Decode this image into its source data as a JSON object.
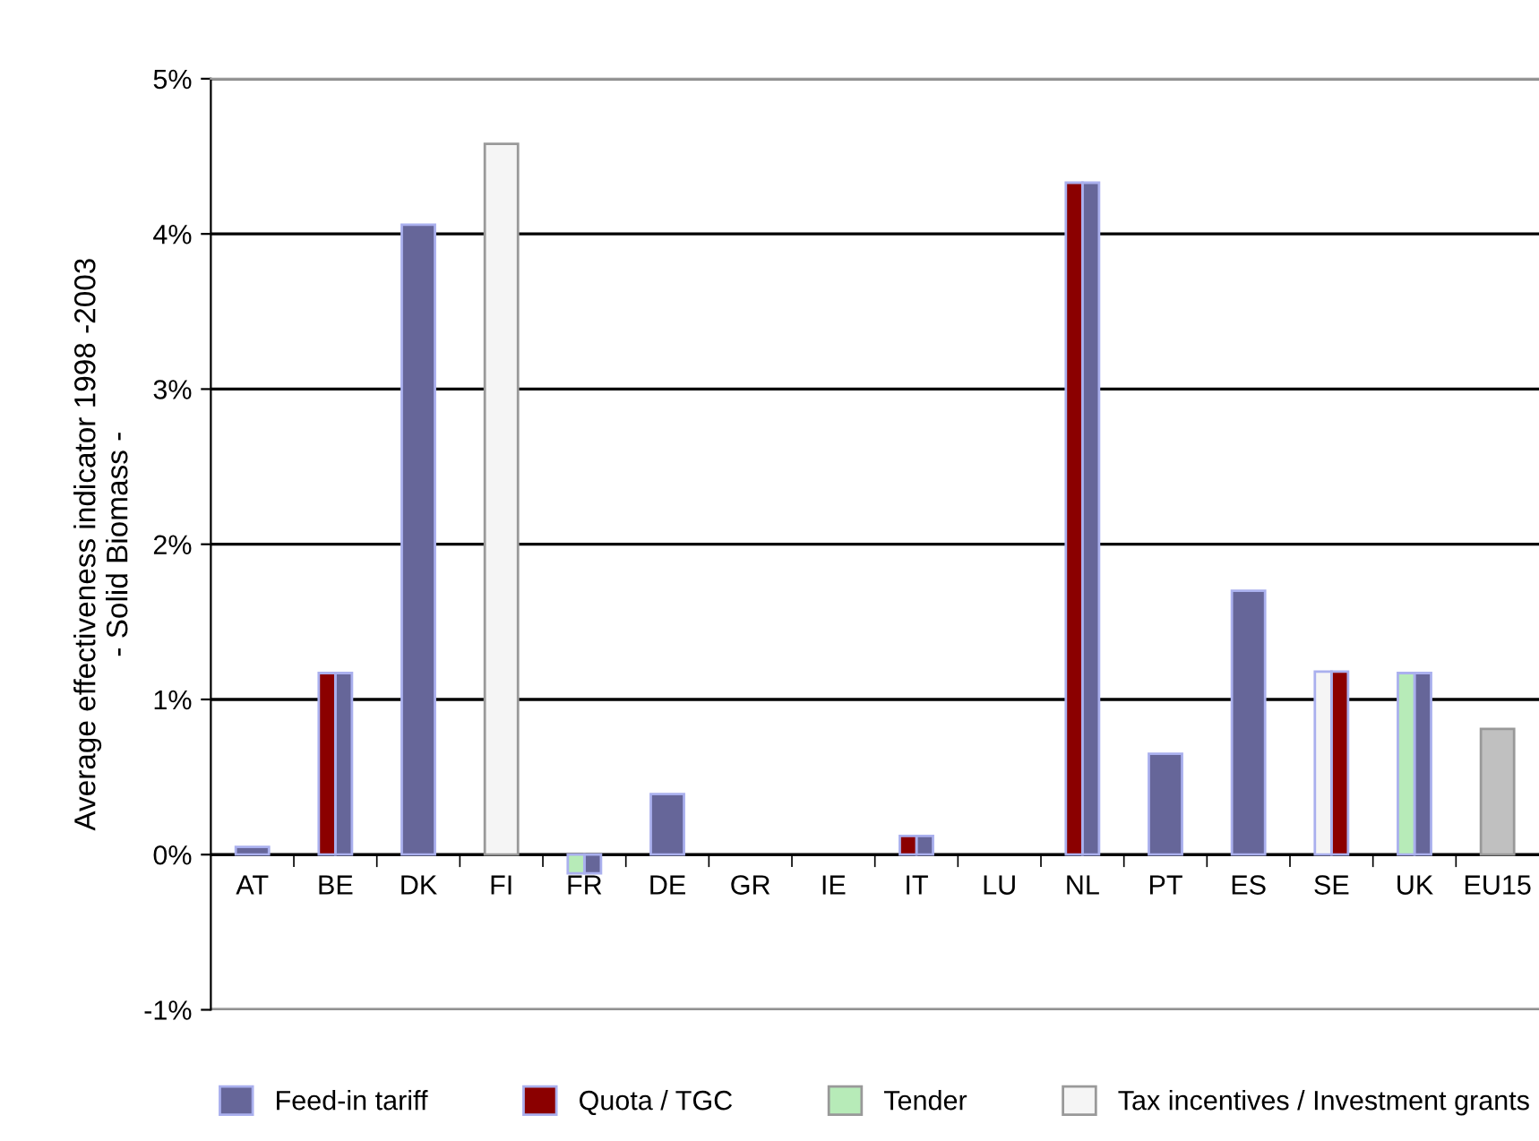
{
  "chart_data": {
    "type": "bar",
    "ylabel": "Average effectiveness indicator 1998 -2003\n- Solid Biomass -",
    "categories": [
      "AT",
      "BE",
      "DK",
      "FI",
      "FR",
      "DE",
      "GR",
      "IE",
      "IT",
      "LU",
      "NL",
      "PT",
      "ES",
      "SE",
      "UK",
      "EU15"
    ],
    "series": [
      {
        "name": "Feed-in tariff",
        "color": "#666699",
        "values": [
          0.05,
          1.17,
          4.06,
          null,
          -0.12,
          0.39,
          null,
          null,
          0.12,
          null,
          4.33,
          0.65,
          1.7,
          null,
          1.17,
          null
        ]
      },
      {
        "name": "Quota / TGC",
        "color": "#8b0000",
        "values": [
          null,
          1.17,
          null,
          null,
          null,
          null,
          null,
          null,
          0.12,
          null,
          4.33,
          null,
          null,
          1.18,
          null,
          null
        ]
      },
      {
        "name": "Tender",
        "color": "#b7ebb8",
        "values": [
          null,
          null,
          null,
          null,
          -0.12,
          null,
          null,
          null,
          null,
          null,
          null,
          null,
          null,
          null,
          1.17,
          null
        ]
      },
      {
        "name": "Tax incentives / Investment grants",
        "color": "#f5f5f5",
        "values": [
          null,
          null,
          null,
          4.58,
          null,
          null,
          null,
          null,
          null,
          null,
          null,
          null,
          null,
          1.18,
          null,
          null
        ]
      },
      {
        "color": "#c0c0c0",
        "values": [
          null,
          null,
          null,
          null,
          null,
          null,
          null,
          null,
          null,
          null,
          null,
          null,
          null,
          null,
          null,
          0.81
        ]
      }
    ],
    "ylim": [
      -1,
      5
    ],
    "yticks": [
      {
        "value": -1,
        "label": "-1%"
      },
      {
        "value": 0,
        "label": "0%"
      },
      {
        "value": 1,
        "label": "1%"
      },
      {
        "value": 2,
        "label": "2%"
      },
      {
        "value": 3,
        "label": "3%"
      },
      {
        "value": 4,
        "label": "4%"
      },
      {
        "value": 5,
        "label": "5%"
      }
    ],
    "grid": "y",
    "legend": "bottom"
  }
}
